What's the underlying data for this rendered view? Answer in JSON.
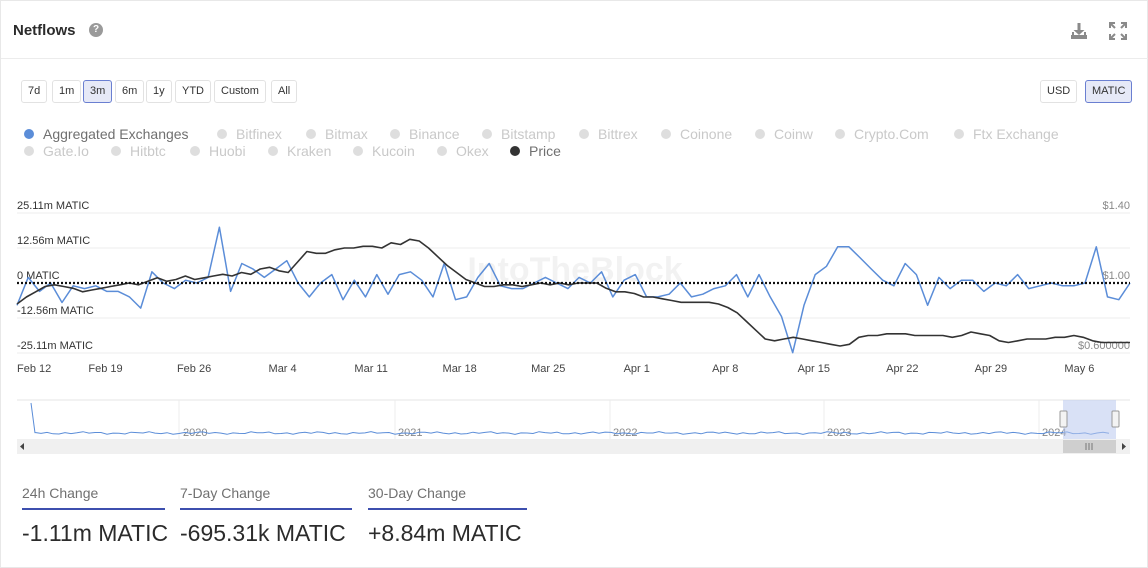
{
  "header": {
    "title": "Netflows",
    "help_icon": "question-circle-icon",
    "download_icon": "download-icon",
    "expand_icon": "expand-icon"
  },
  "ranges": [
    "7d",
    "1m",
    "3m",
    "6m",
    "1y",
    "YTD",
    "Custom",
    "All"
  ],
  "active_range": "3m",
  "units": [
    "USD",
    "MATIC"
  ],
  "active_unit": "MATIC",
  "legend": [
    {
      "label": "Aggregated Exchanges",
      "on": true,
      "color": "#5b8dd8"
    },
    {
      "label": "Bitfinex",
      "on": false
    },
    {
      "label": "Bitmax",
      "on": false
    },
    {
      "label": "Binance",
      "on": false
    },
    {
      "label": "Bitstamp",
      "on": false
    },
    {
      "label": "Bittrex",
      "on": false
    },
    {
      "label": "Coinone",
      "on": false
    },
    {
      "label": "Coinw",
      "on": false
    },
    {
      "label": "Crypto.Com",
      "on": false
    },
    {
      "label": "Ftx Exchange",
      "on": false
    },
    {
      "label": "Gate.Io",
      "on": false
    },
    {
      "label": "Hitbtc",
      "on": false
    },
    {
      "label": "Huobi",
      "on": false
    },
    {
      "label": "Kraken",
      "on": false
    },
    {
      "label": "Kucoin",
      "on": false
    },
    {
      "label": "Okex",
      "on": false
    },
    {
      "label": "Price",
      "on": true,
      "color": "#333333"
    }
  ],
  "watermark": "IntoTheBlock",
  "chart_data": {
    "type": "line",
    "title": "Netflows",
    "x_tick_labels": [
      "Feb 12",
      "Feb 19",
      "Feb 26",
      "Mar 4",
      "Mar 11",
      "Mar 18",
      "Mar 25",
      "Apr 1",
      "Apr 8",
      "Apr 15",
      "Apr 22",
      "Apr 29",
      "May 6"
    ],
    "y_left": {
      "ticks": [
        "25.11m MATIC",
        "12.56m MATIC",
        "0 MATIC",
        "-12.56m MATIC",
        "-25.11m MATIC"
      ],
      "range": [
        -25.11,
        25.11
      ],
      "unit": "m MATIC"
    },
    "y_right": {
      "ticks": [
        "$1.40",
        "$1.00",
        "$0.600000"
      ],
      "range": [
        0.6,
        1.4
      ]
    },
    "x_start": "2024-02-12",
    "x_end": "2024-05-10",
    "series": [
      {
        "name": "Aggregated Exchanges",
        "axis": "left",
        "color": "#5b8dd8",
        "values": [
          -8,
          2,
          -3,
          0,
          -7,
          -1,
          -2,
          -1,
          -3,
          -3,
          -5,
          -9,
          4,
          0,
          -2,
          1,
          0,
          2,
          20,
          -3,
          7,
          5,
          2,
          5,
          8,
          0,
          -5,
          0,
          3,
          -6,
          1,
          -5,
          3,
          -4,
          3,
          4,
          1,
          -5,
          7,
          -6,
          -5,
          2,
          7,
          -1,
          -2,
          -2,
          0,
          2,
          0,
          -2,
          2,
          0,
          4,
          -5,
          1,
          3,
          -5,
          -5,
          -4,
          0,
          -5,
          -4,
          -2,
          -1,
          3,
          -5,
          3,
          -5,
          -12,
          -25,
          -8,
          3,
          6,
          13,
          13,
          9,
          5,
          1,
          -1,
          7,
          3,
          -8,
          2,
          -2,
          1,
          1,
          -3,
          0,
          -1,
          3,
          -2,
          -1,
          0,
          -1,
          -1,
          0,
          13,
          -5,
          -6,
          0
        ]
      },
      {
        "name": "Price",
        "axis": "right",
        "color": "#333333",
        "values": [
          0.88,
          0.92,
          0.95,
          0.98,
          0.99,
          0.98,
          0.97,
          0.95,
          0.96,
          0.97,
          0.98,
          0.99,
          1.0,
          0.99,
          1.01,
          1.03,
          1.01,
          1.02,
          1.04,
          1.02,
          1.03,
          1.04,
          1.05,
          1.04,
          1.06,
          1.05,
          1.08,
          1.09,
          1.07,
          1.06,
          1.12,
          1.18,
          1.17,
          1.17,
          1.19,
          1.2,
          1.2,
          1.21,
          1.21,
          1.2,
          1.23,
          1.22,
          1.25,
          1.24,
          1.2,
          1.15,
          1.1,
          1.06,
          1.02,
          1.0,
          0.98,
          0.98,
          0.99,
          0.99,
          0.98,
          0.99,
          1.0,
          0.99,
          1.0,
          0.99,
          1.0,
          1.0,
          1.0,
          0.97,
          0.95,
          0.95,
          0.94,
          0.92,
          0.92,
          0.91,
          0.9,
          0.89,
          0.89,
          0.89,
          0.89,
          0.88,
          0.86,
          0.83,
          0.78,
          0.73,
          0.68,
          0.67,
          0.68,
          0.69,
          0.68,
          0.67,
          0.66,
          0.65,
          0.64,
          0.65,
          0.69,
          0.7,
          0.7,
          0.71,
          0.71,
          0.71,
          0.7,
          0.7,
          0.7,
          0.7,
          0.69,
          0.7,
          0.72,
          0.71,
          0.7,
          0.67,
          0.66,
          0.67,
          0.68,
          0.68,
          0.68,
          0.69,
          0.69,
          0.7,
          0.69,
          0.67,
          0.66,
          0.66,
          0.66,
          0.66
        ]
      }
    ],
    "zero_line": "dotted",
    "navigator": {
      "year_labels": [
        "2020",
        "2021",
        "2022",
        "2023",
        "2024"
      ]
    }
  },
  "stats": [
    {
      "label": "24h Change",
      "value": "-1.11m MATIC"
    },
    {
      "label": "7-Day Change",
      "value": "-695.31k MATIC"
    },
    {
      "label": "30-Day Change",
      "value": "+8.84m MATIC"
    }
  ]
}
